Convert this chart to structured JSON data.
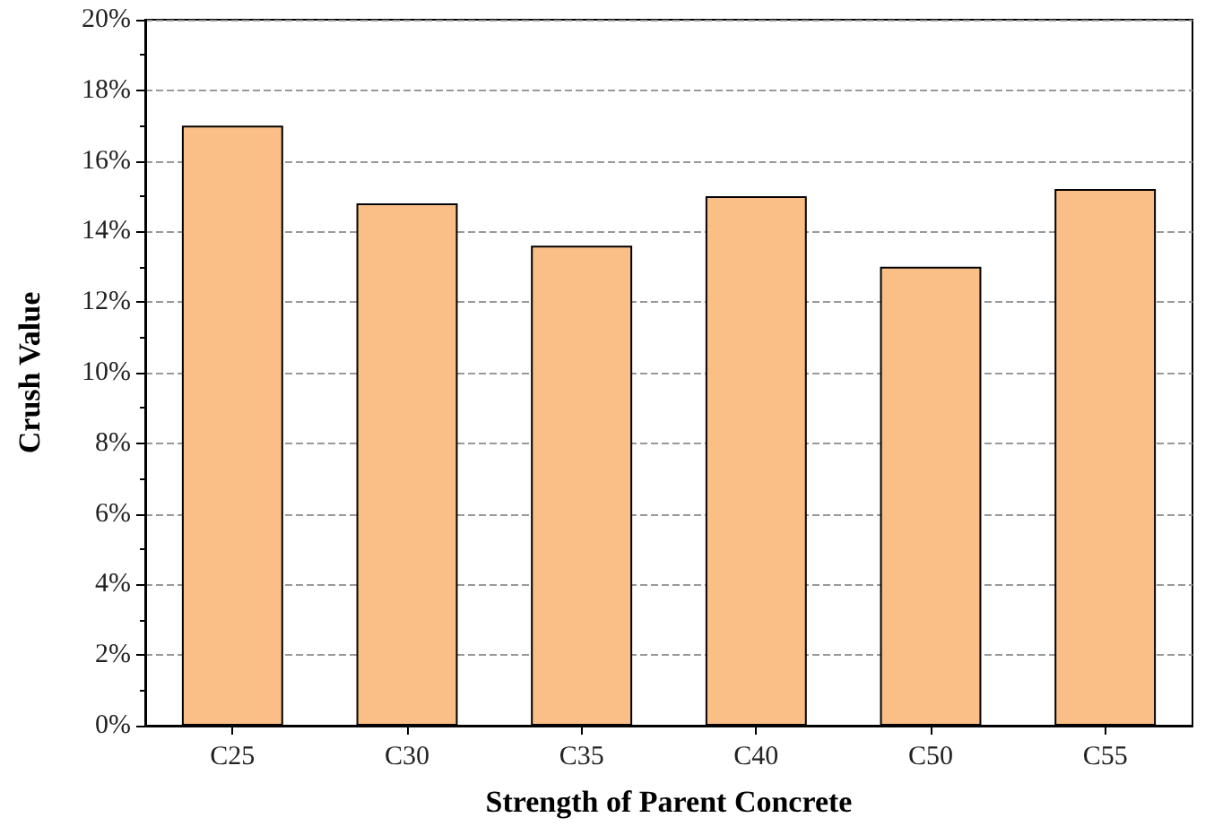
{
  "chart_data": {
    "type": "bar",
    "xlabel": "Strength of Parent Concrete",
    "ylabel": "Crush Value",
    "categories": [
      "C25",
      "C30",
      "C35",
      "C40",
      "C50",
      "C55"
    ],
    "values": [
      17.0,
      14.8,
      13.6,
      15.0,
      13.0,
      15.2
    ],
    "color": "#f9bf87",
    "ylim": [
      0,
      20
    ],
    "yticks": [
      {
        "value": 0,
        "label": "0%"
      },
      {
        "value": 2,
        "label": "2%"
      },
      {
        "value": 4,
        "label": "4%"
      },
      {
        "value": 6,
        "label": "6%"
      },
      {
        "value": 8,
        "label": "8%"
      },
      {
        "value": 10,
        "label": "10%"
      },
      {
        "value": 12,
        "label": "12%"
      },
      {
        "value": 14,
        "label": "14%"
      },
      {
        "value": 16,
        "label": "16%"
      },
      {
        "value": 18,
        "label": "18%"
      },
      {
        "value": 20,
        "label": "20%"
      }
    ],
    "grid": "y"
  }
}
